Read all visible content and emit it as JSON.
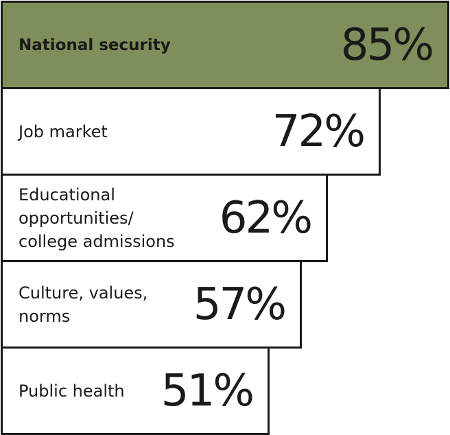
{
  "chart_data": {
    "type": "bar",
    "orientation": "horizontal",
    "categories": [
      "National security",
      "Job market",
      "Educational\nopportunities/\ncollege admissions",
      "Culture, values,\nnorms",
      "Public health"
    ],
    "values": [
      85,
      72,
      62,
      57,
      51
    ],
    "value_labels": [
      "85%",
      "72%",
      "62%",
      "57%",
      "51%"
    ],
    "highlight_index": 0,
    "colors": {
      "highlight": "#7f8f5b",
      "default": "#ffffff",
      "border": "#1a1a1a",
      "text": "#1a1a1a"
    },
    "xlim": [
      0,
      85
    ],
    "grid": false,
    "legend": "none"
  }
}
